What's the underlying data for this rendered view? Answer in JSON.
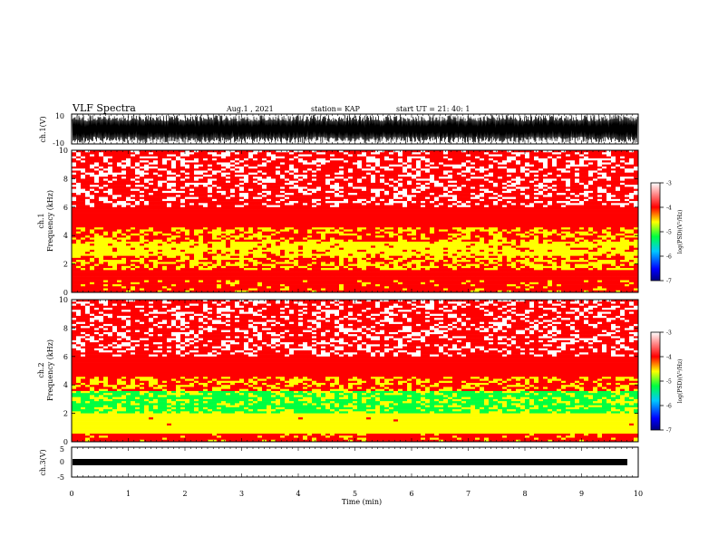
{
  "header": {
    "title": "VLF Spectra",
    "date": "Aug.1 , 2021",
    "station": "station= KAP",
    "start": "start UT = 21: 40: 1"
  },
  "colors": {
    "palette": [
      "#000080",
      "#0000ff",
      "#00c8ff",
      "#00ff40",
      "#ffff00",
      "#ff0000",
      "#ffffff"
    ]
  },
  "chart_data": [
    {
      "type": "line",
      "panel": "waveform-ch1",
      "ylabel": "ch.1(V)",
      "ylim": [
        -10,
        10
      ],
      "yticks": [
        "10",
        "-10"
      ],
      "xlim": [
        0,
        10
      ]
    },
    {
      "type": "heatmap",
      "panel": "spectrogram-ch1",
      "ylabel": "ch.1\nFrequency (kHz)",
      "ylim": [
        0,
        10
      ],
      "yticks": [
        0,
        2,
        4,
        6,
        8,
        10
      ],
      "xlim": [
        0,
        10
      ],
      "colorbar": {
        "label": "log(PSD)(V²/Hz)",
        "range": [
          -7,
          -3
        ],
        "ticks": [
          "-3",
          "-4",
          "-5",
          "-6",
          "-7"
        ]
      },
      "bands_khz_logpsd": [
        [
          0.0,
          0.8,
          -3.8
        ],
        [
          0.8,
          1.6,
          -3.7
        ],
        [
          1.6,
          2.6,
          -4.0
        ],
        [
          2.6,
          3.6,
          -4.2
        ],
        [
          3.6,
          4.6,
          -3.9
        ],
        [
          4.6,
          6.0,
          -3.4
        ],
        [
          6.0,
          10.0,
          -3.1
        ]
      ]
    },
    {
      "type": "heatmap",
      "panel": "spectrogram-ch2",
      "ylabel": "ch.2\nFrequency (kHz)",
      "ylim": [
        0,
        10
      ],
      "yticks": [
        0,
        2,
        4,
        6,
        8,
        10
      ],
      "xlim": [
        0,
        10
      ],
      "colorbar": {
        "label": "log(PSD)(V²/Hz)",
        "range": [
          -7,
          -3
        ],
        "ticks": [
          "-3",
          "-4",
          "-5",
          "-6",
          "-7"
        ]
      },
      "bands_khz_logpsd": [
        [
          0.0,
          0.6,
          -3.8
        ],
        [
          0.6,
          2.0,
          -4.3
        ],
        [
          2.0,
          3.6,
          -4.7
        ],
        [
          3.6,
          4.6,
          -3.9
        ],
        [
          4.6,
          6.0,
          -3.4
        ],
        [
          6.0,
          10.0,
          -3.1
        ]
      ]
    },
    {
      "type": "line",
      "panel": "waveform-ch3",
      "ylabel": "ch.3(V)",
      "ylim": [
        -5,
        5
      ],
      "yticks": [
        "5",
        "0",
        "-5"
      ],
      "xlim": [
        0,
        10
      ]
    }
  ],
  "xaxis": {
    "label": "Time (min)",
    "ticks": [
      "0",
      "1",
      "2",
      "3",
      "4",
      "5",
      "6",
      "7",
      "8",
      "9",
      "10"
    ]
  }
}
